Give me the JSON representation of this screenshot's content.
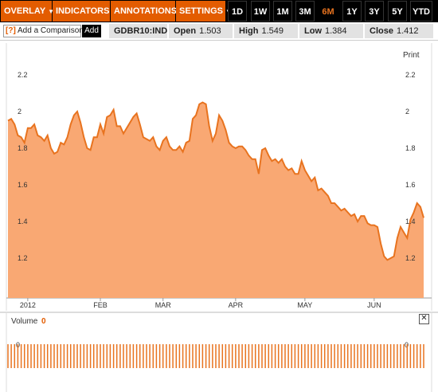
{
  "toolbar": {
    "menus": [
      {
        "label": "OVERLAY"
      },
      {
        "label": "INDICATORS"
      },
      {
        "label": "ANNOTATIONS"
      },
      {
        "label": "SETTINGS"
      }
    ],
    "ranges": [
      "1D",
      "1W",
      "1M",
      "3M",
      "6M",
      "1Y",
      "3Y",
      "5Y",
      "YTD"
    ],
    "active_range": "6M",
    "caret": "▼"
  },
  "quote": {
    "compare_q": "[?]",
    "compare_placeholder": "Add a Comparison",
    "add_label": "Add",
    "ticker": "GDBR10:IND",
    "open_label": "Open",
    "open_value": "1.503",
    "high_label": "High",
    "high_value": "1.549",
    "low_label": "Low",
    "low_value": "1.384",
    "close_label": "Close",
    "close_value": "1.412"
  },
  "print_label": "Print",
  "volume": {
    "label": "Volume",
    "value": "0",
    "axis_label": "0",
    "close_glyph": "✕"
  },
  "colors": {
    "accent": "#e35c00",
    "line": "#e8731f",
    "area": "#f9a873",
    "toolbar_bg": "#000000"
  },
  "chart_data": {
    "type": "area",
    "ylim": [
      1.0,
      2.4
    ],
    "yticks": [
      "1.2",
      "1.4",
      "1.6",
      "1.8",
      "2",
      "2.2"
    ],
    "xticks": [
      "2012",
      "FEB",
      "MAR",
      "APR",
      "MAY",
      "JUN"
    ],
    "xtick_index": [
      6,
      28,
      47,
      69,
      90,
      111
    ],
    "values": [
      1.95,
      1.96,
      1.93,
      1.87,
      1.86,
      1.83,
      1.91,
      1.91,
      1.93,
      1.87,
      1.86,
      1.84,
      1.87,
      1.8,
      1.77,
      1.78,
      1.83,
      1.82,
      1.86,
      1.93,
      1.98,
      2.0,
      1.94,
      1.86,
      1.8,
      1.79,
      1.86,
      1.86,
      1.93,
      1.88,
      1.97,
      1.98,
      2.01,
      1.92,
      1.92,
      1.88,
      1.91,
      1.94,
      1.97,
      1.99,
      1.93,
      1.86,
      1.85,
      1.84,
      1.86,
      1.81,
      1.79,
      1.84,
      1.86,
      1.81,
      1.79,
      1.79,
      1.81,
      1.78,
      1.83,
      1.84,
      1.96,
      1.98,
      2.04,
      2.05,
      2.04,
      1.92,
      1.84,
      1.88,
      1.98,
      1.95,
      1.9,
      1.83,
      1.81,
      1.8,
      1.81,
      1.81,
      1.79,
      1.76,
      1.74,
      1.74,
      1.66,
      1.79,
      1.8,
      1.76,
      1.73,
      1.74,
      1.72,
      1.74,
      1.7,
      1.68,
      1.69,
      1.66,
      1.66,
      1.73,
      1.68,
      1.65,
      1.62,
      1.64,
      1.57,
      1.58,
      1.56,
      1.54,
      1.5,
      1.5,
      1.48,
      1.46,
      1.47,
      1.45,
      1.43,
      1.44,
      1.4,
      1.43,
      1.43,
      1.39,
      1.38,
      1.38,
      1.37,
      1.28,
      1.21,
      1.19,
      1.2,
      1.21,
      1.31,
      1.37,
      1.34,
      1.31,
      1.41,
      1.45,
      1.5,
      1.48,
      1.42
    ],
    "volume_values": [
      0
    ]
  }
}
